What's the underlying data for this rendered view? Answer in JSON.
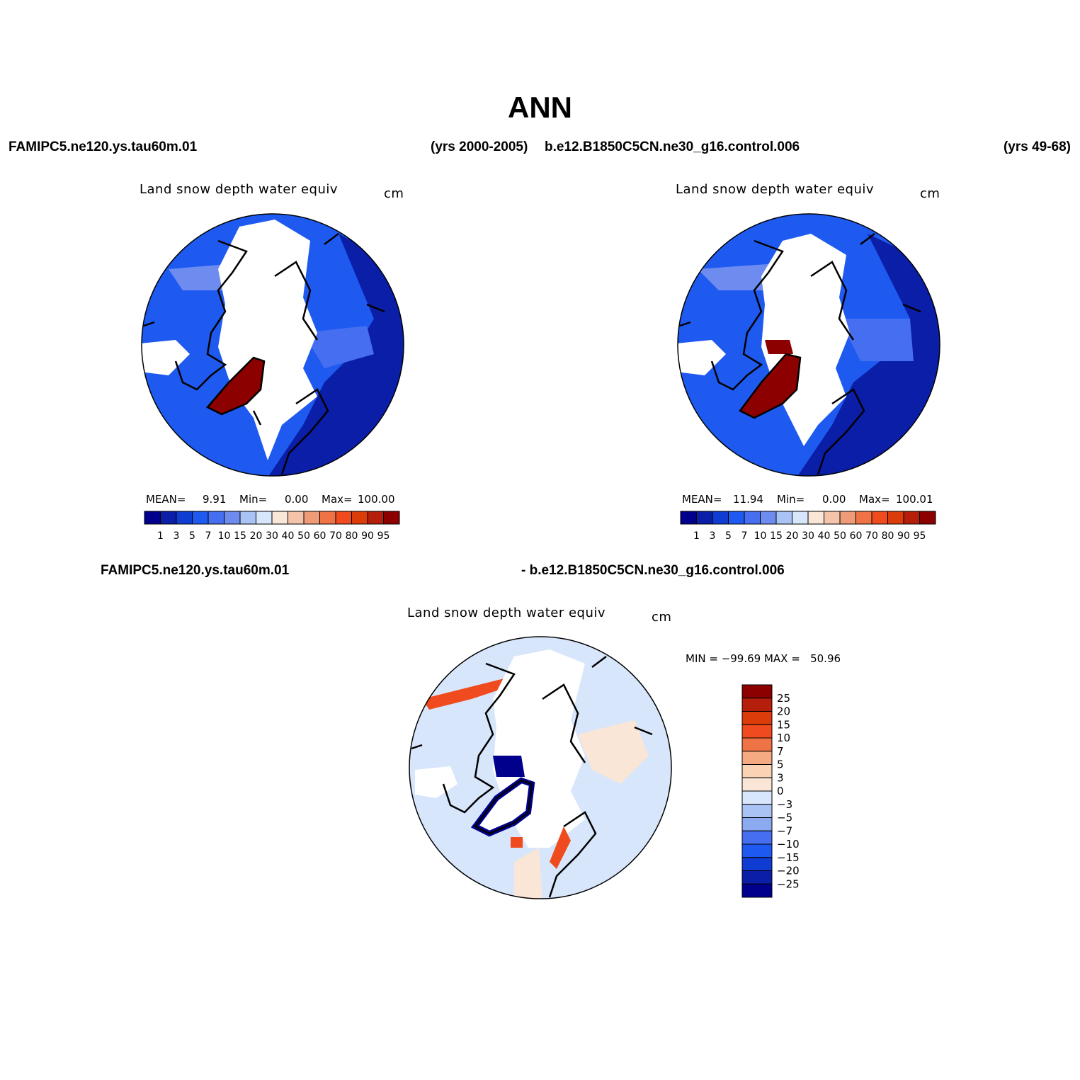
{
  "title": "ANN",
  "header": {
    "case1": "FAMIPC5.ne120.ys.tau60m.01",
    "years1": "(yrs 2000-2005)",
    "case2": "b.e12.B1850C5CN.ne30_g16.control.006",
    "years2": "(yrs 49-68)"
  },
  "colors": {
    "abs_scale": [
      "#00008c",
      "#0a1ea8",
      "#0f3cd2",
      "#1e5af0",
      "#466ef0",
      "#6e8cf0",
      "#aac3f5",
      "#d7e6fa",
      "#fae6d7",
      "#f5c3aa",
      "#f09b78",
      "#f07346",
      "#f04b1e",
      "#dc3c0a",
      "#b41e0a",
      "#8c0000"
    ],
    "diff_scale": [
      "#8c0000",
      "#b41e0a",
      "#dc3c0a",
      "#f04b1e",
      "#f07346",
      "#f5aa82",
      "#fad2b4",
      "#fae6d7",
      "#d7e6fa",
      "#aac3f5",
      "#8caaf0",
      "#466ef0",
      "#1e5af0",
      "#0f3cd2",
      "#0a1ea8",
      "#00008c"
    ],
    "ice": "#8c0000",
    "snow_high": "#ffffff"
  },
  "panels": [
    {
      "var_title": "Land snow depth water equiv",
      "units": "cm",
      "stats": {
        "mean_label": "MEAN=",
        "mean": "9.91",
        "min_label": "Min=",
        "min": "0.00",
        "max_label": "Max=",
        "max": "100.00"
      }
    },
    {
      "var_title": "Land snow depth water equiv",
      "units": "cm",
      "stats": {
        "mean_label": "MEAN=",
        "mean": "11.94",
        "min_label": "Min=",
        "min": "0.00",
        "max_label": "Max=",
        "max": "100.01"
      }
    }
  ],
  "abs_ticks": [
    "1",
    "3",
    "5",
    "7",
    "10",
    "15",
    "20",
    "30",
    "40",
    "50",
    "60",
    "70",
    "80",
    "90",
    "95"
  ],
  "diff": {
    "label_left": "FAMIPC5.ne120.ys.tau60m.01",
    "label_right": "- b.e12.B1850C5CN.ne30_g16.control.006",
    "var_title": "Land snow depth water equiv",
    "units": "cm",
    "minmax": "MIN = −99.69 MAX =   50.96",
    "ticks": [
      "25",
      "20",
      "15",
      "10",
      "7",
      "5",
      "3",
      "0",
      "−3",
      "−5",
      "−7",
      "−10",
      "−15",
      "−20",
      "−25"
    ]
  }
}
